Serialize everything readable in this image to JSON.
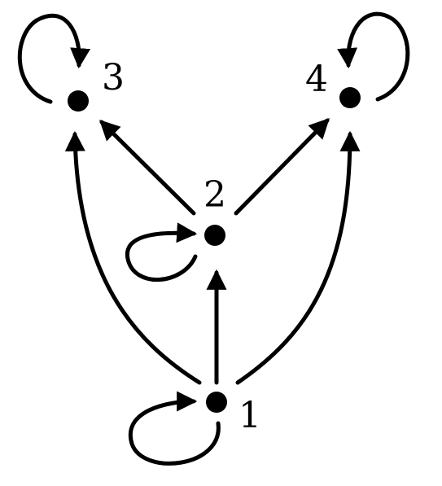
{
  "diagram": {
    "type": "directed-graph",
    "nodes": [
      {
        "id": "1",
        "label": "1"
      },
      {
        "id": "2",
        "label": "2"
      },
      {
        "id": "3",
        "label": "3"
      },
      {
        "id": "4",
        "label": "4"
      }
    ],
    "edges": [
      {
        "from": "1",
        "to": "1",
        "kind": "self-loop"
      },
      {
        "from": "1",
        "to": "2"
      },
      {
        "from": "1",
        "to": "3"
      },
      {
        "from": "1",
        "to": "4"
      },
      {
        "from": "2",
        "to": "2",
        "kind": "self-loop"
      },
      {
        "from": "2",
        "to": "3"
      },
      {
        "from": "2",
        "to": "4"
      },
      {
        "from": "3",
        "to": "3",
        "kind": "self-loop"
      },
      {
        "from": "4",
        "to": "4",
        "kind": "self-loop"
      }
    ],
    "colors": {
      "stroke": "#000000",
      "background": "#ffffff"
    }
  }
}
